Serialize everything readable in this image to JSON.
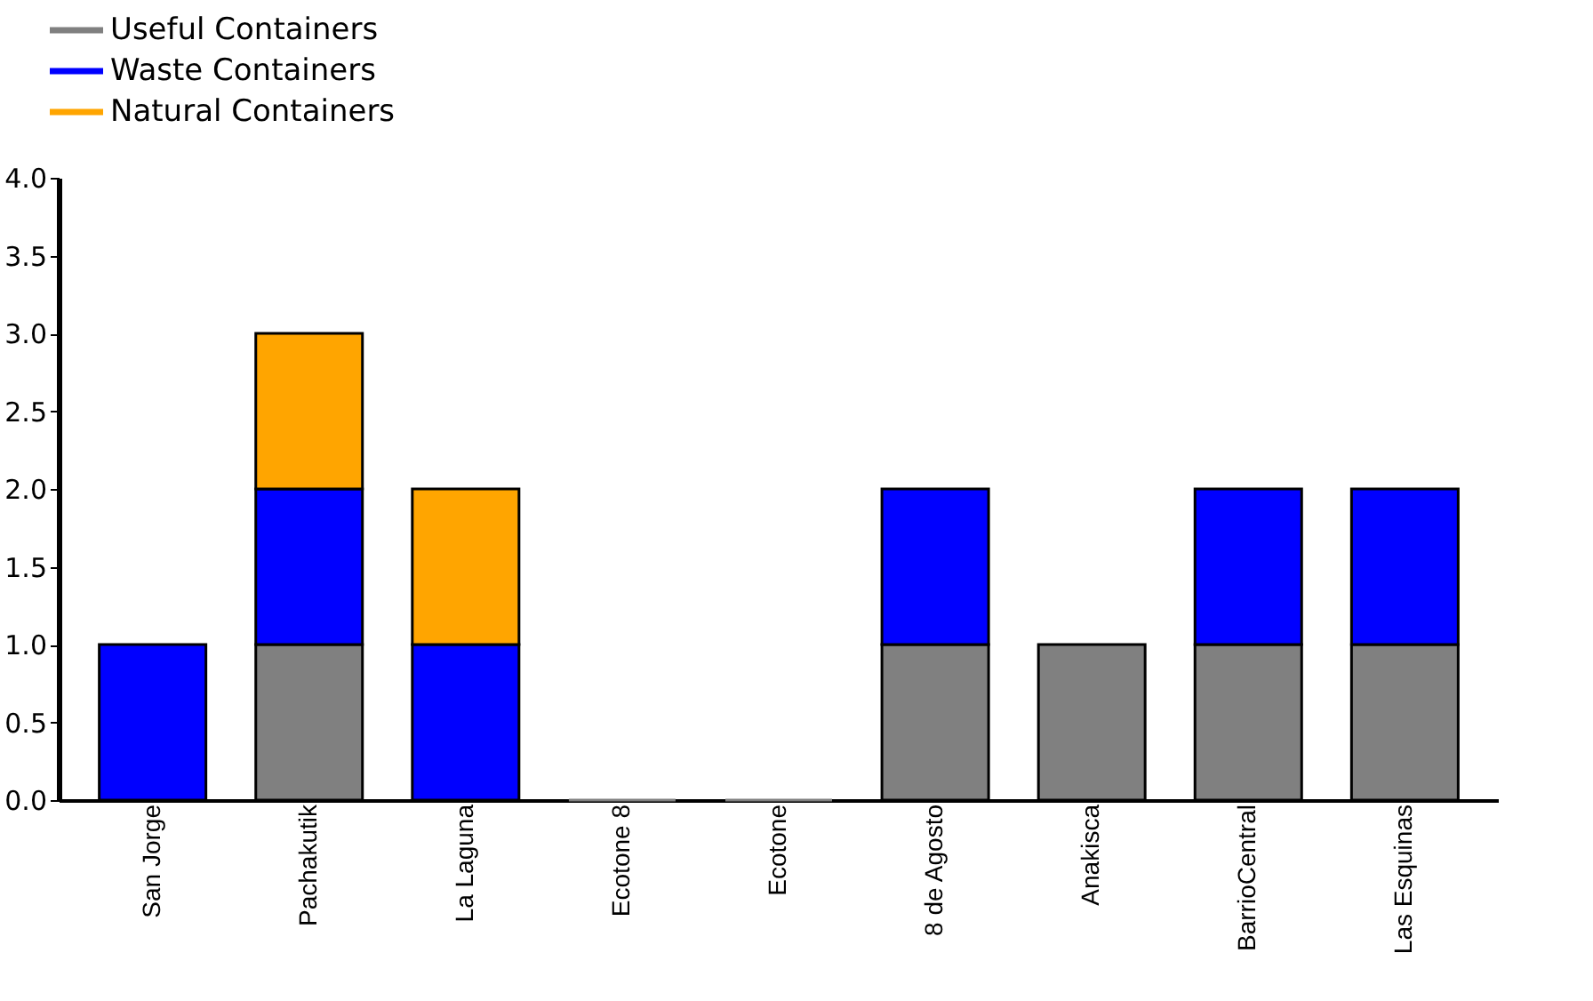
{
  "chart_data": {
    "type": "bar",
    "stacked": true,
    "legend": "top left",
    "grid": false,
    "categories": [
      "San Jorge",
      "Pachakutik",
      "La Laguna",
      "Ecotone 8",
      "Ecotone",
      "8 de Agosto",
      "Anakisca",
      "BarrioCentral",
      "Las Esquinas"
    ],
    "series": [
      {
        "name": "Useful Containers",
        "color": "#808080",
        "values": [
          null,
          1,
          null,
          0,
          0,
          1,
          1,
          1,
          1
        ]
      },
      {
        "name": "Waste Containers",
        "color": "#0000ff",
        "values": [
          1,
          1,
          1,
          null,
          null,
          1,
          null,
          1,
          1
        ]
      },
      {
        "name": "Natural Containers",
        "color": "#ffa500",
        "values": [
          null,
          1,
          1,
          null,
          null,
          null,
          null,
          null,
          null
        ]
      }
    ],
    "ylim": [
      0,
      4
    ],
    "yticks": [
      {
        "value": 0,
        "label": "0.0"
      },
      0.5,
      {
        "value": 1,
        "label": "1.0"
      },
      1.5,
      {
        "value": 2,
        "label": "2.0"
      },
      2.5,
      {
        "value": 3,
        "label": "3.0"
      },
      3.5,
      {
        "value": 4,
        "label": "4.0"
      }
    ]
  }
}
